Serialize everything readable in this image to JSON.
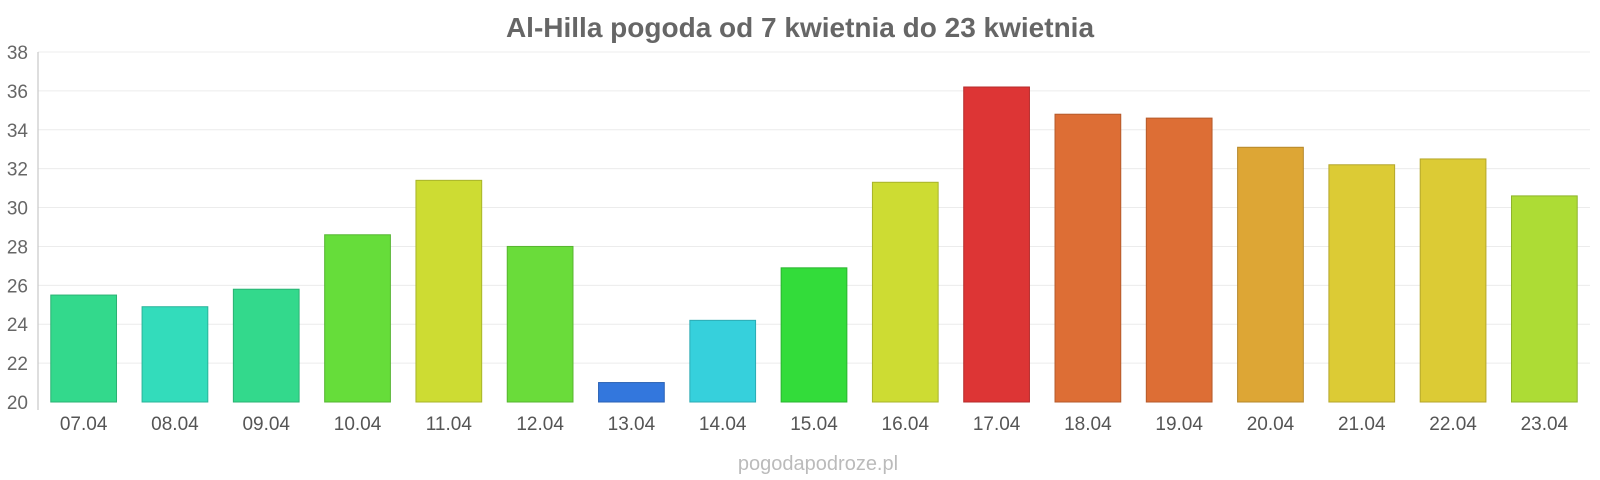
{
  "chart_data": {
    "type": "bar",
    "title": "Al-Hilla pogoda od 7 kwietnia do 23 kwietnia",
    "xlabel": "",
    "ylabel": "",
    "ylim": [
      20,
      38
    ],
    "yticks": [
      "20",
      "22",
      "24",
      "26",
      "28",
      "30",
      "32",
      "34",
      "36",
      "38"
    ],
    "grid": true,
    "legend": "none",
    "categories": [
      "07.04",
      "08.04",
      "09.04",
      "10.04",
      "11.04",
      "12.04",
      "13.04",
      "14.04",
      "15.04",
      "16.04",
      "17.04",
      "18.04",
      "19.04",
      "20.04",
      "21.04",
      "22.04",
      "23.04"
    ],
    "values": [
      25.5,
      24.9,
      25.8,
      28.6,
      31.4,
      28.0,
      21.0,
      24.2,
      26.9,
      31.3,
      36.2,
      34.8,
      34.6,
      33.1,
      32.2,
      32.5,
      30.6
    ],
    "colors": [
      "#33d98c",
      "#33dcbb",
      "#33d98c",
      "#66dd3a",
      "#cddc33",
      "#6adc3a",
      "#3377dd",
      "#36d0dc",
      "#33dc3a",
      "#cddc33",
      "#dd3535",
      "#dd6e35",
      "#dd6e35",
      "#dda635",
      "#dccb35",
      "#dccb35",
      "#addc35"
    ]
  },
  "watermark": "pogodapodroze.pl"
}
